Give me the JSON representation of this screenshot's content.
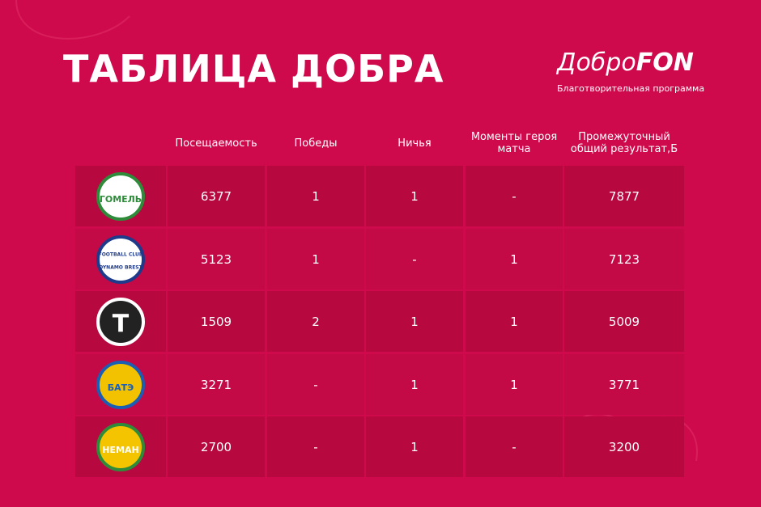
{
  "header": {
    "title": "ТАБЛИЦА ДОБРА",
    "brand_main": "Добро",
    "brand_accent": "FON",
    "brand_subtitle": "Благотворительная программа"
  },
  "table": {
    "columns": [
      "Посещаемость",
      "Победы",
      "Ничья",
      "Моменты героя матча",
      "Промежуточный общий результат,Б"
    ],
    "rows": [
      {
        "logo_text": [
          "ГОМЕЛЬ"
        ],
        "cells": [
          "6377",
          "1",
          "1",
          "-",
          "7877"
        ]
      },
      {
        "logo_text": [
          "FOOTBALL CLUB",
          "DYNAMO BREST"
        ],
        "cells": [
          "5123",
          "1",
          "-",
          "1",
          "7123"
        ]
      },
      {
        "logo_text": [
          "T"
        ],
        "cells": [
          "1509",
          "2",
          "1",
          "1",
          "5009"
        ]
      },
      {
        "logo_text": [
          "БАТЭ"
        ],
        "cells": [
          "3271",
          "-",
          "1",
          "1",
          "3771"
        ]
      },
      {
        "logo_text": [
          "НЕМАН"
        ],
        "cells": [
          "2700",
          "-",
          "1",
          "-",
          "3200"
        ]
      }
    ]
  }
}
